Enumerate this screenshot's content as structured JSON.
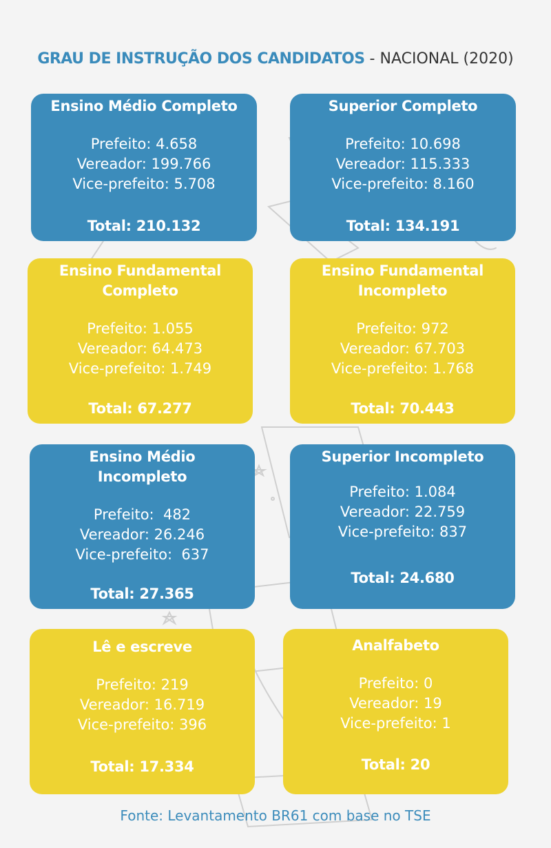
{
  "header": {
    "title_strong": "GRAU DE INSTRUÇÃO DOS CANDIDATOS",
    "title_rest": " - NACIONAL (2020)"
  },
  "cards": [
    {
      "title": "Ensino Médio Completo",
      "prefeito": "Prefeito: 4.658",
      "vereador": "Vereador: 199.766",
      "vice": "Vice-prefeito: 5.708",
      "total": "Total: 210.132"
    },
    {
      "title": "Superior Completo",
      "prefeito": "Prefeito: 10.698",
      "vereador": "Vereador: 115.333",
      "vice": "Vice-prefeito: 8.160",
      "total": "Total: 134.191"
    },
    {
      "title": "Ensino Fundamental\nCompleto",
      "prefeito": "Prefeito: 1.055",
      "vereador": "Vereador: 64.473",
      "vice": "Vice-prefeito: 1.749",
      "total": "Total: 67.277"
    },
    {
      "title": "Ensino Fundamental\nIncompleto",
      "prefeito": "Prefeito: 972",
      "vereador": "Vereador: 67.703",
      "vice": "Vice-prefeito: 1.768",
      "total": "Total: 70.443"
    },
    {
      "title": "Ensino Médio\nIncompleto",
      "prefeito": "Prefeito:  482",
      "vereador": "Vereador: 26.246",
      "vice": "Vice-prefeito:  637",
      "total": "Total: 27.365"
    },
    {
      "title": "Superior Incompleto",
      "prefeito": "Prefeito: 1.084",
      "vereador": "Vereador: 22.759",
      "vice": "Vice-prefeito: 837",
      "total": "Total: 24.680"
    },
    {
      "title": "Lê e escreve",
      "prefeito": "Prefeito: 219",
      "vereador": "Vereador: 16.719",
      "vice": "Vice-prefeito: 396",
      "total": "Total: 17.334"
    },
    {
      "title": "Analfabeto",
      "prefeito": "Prefeito: 0",
      "vereador": "Vereador: 19",
      "vice": "Vice-prefeito: 1",
      "total": "Total: 20"
    }
  ],
  "source": "Fonte: Levantamento BR61 com base no TSE",
  "colors": {
    "blue": "#3c8cbb",
    "yellow": "#eed332",
    "header_blue": "#3a8bbb"
  }
}
